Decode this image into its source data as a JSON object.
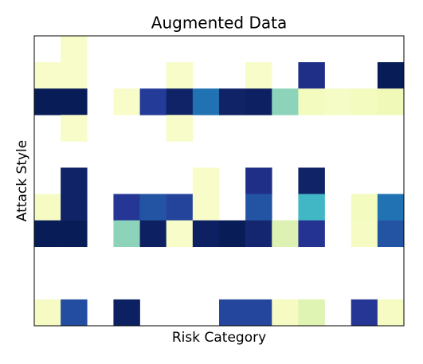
{
  "chart_data": {
    "type": "heatmap",
    "title": "Augmented Data",
    "xlabel": "Risk Category",
    "ylabel": "Attack Style",
    "colormap": "YlGnBu",
    "zlim": [
      0,
      1
    ],
    "values": [
      [
        null,
        0.05,
        null,
        null,
        null,
        null,
        null,
        null,
        null,
        null,
        null,
        null,
        null,
        null
      ],
      [
        0.05,
        0.05,
        null,
        null,
        null,
        0.05,
        null,
        null,
        0.05,
        null,
        0.9,
        null,
        null,
        1.0
      ],
      [
        1.0,
        1.0,
        null,
        0.05,
        0.85,
        0.97,
        0.7,
        0.97,
        0.98,
        0.35,
        0.08,
        0.06,
        0.08,
        0.1
      ],
      [
        null,
        0.05,
        null,
        null,
        null,
        0.05,
        null,
        null,
        null,
        null,
        null,
        null,
        null,
        null
      ],
      [
        null,
        null,
        null,
        null,
        null,
        null,
        null,
        null,
        null,
        null,
        null,
        null,
        null,
        null
      ],
      [
        null,
        0.97,
        null,
        null,
        null,
        null,
        0.05,
        null,
        0.9,
        null,
        0.97,
        null,
        null,
        null
      ],
      [
        0.07,
        0.97,
        null,
        0.87,
        0.78,
        0.83,
        0.05,
        null,
        0.78,
        null,
        0.5,
        null,
        0.08,
        0.7
      ],
      [
        1.0,
        1.0,
        null,
        0.35,
        0.98,
        0.05,
        0.98,
        1.0,
        0.95,
        0.18,
        0.88,
        null,
        0.07,
        0.78
      ],
      [
        null,
        null,
        null,
        null,
        null,
        null,
        null,
        null,
        null,
        null,
        null,
        null,
        null,
        null
      ],
      [
        null,
        null,
        null,
        null,
        null,
        null,
        null,
        null,
        null,
        null,
        null,
        null,
        null,
        null
      ],
      [
        0.07,
        0.8,
        null,
        0.98,
        null,
        null,
        null,
        0.82,
        0.82,
        0.07,
        0.17,
        null,
        0.87,
        0.07
      ]
    ]
  }
}
